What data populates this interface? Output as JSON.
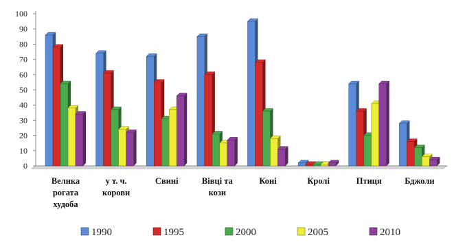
{
  "chart_data": {
    "type": "bar",
    "categories": [
      [
        "Велика",
        "рогата",
        "худоба"
      ],
      [
        "у т. ч.",
        "корови"
      ],
      [
        "Свині"
      ],
      [
        "Вівці та",
        "кози"
      ],
      [
        "Коні"
      ],
      [
        "Кролі"
      ],
      [
        "Птиця"
      ],
      [
        "Бджоли"
      ]
    ],
    "series": [
      {
        "name": "1990",
        "color": "#5b8bd6",
        "values": [
          86,
          74,
          72,
          85,
          95,
          2,
          54,
          28
        ]
      },
      {
        "name": "1995",
        "color": "#d42a2a",
        "values": [
          78,
          61,
          55,
          60,
          68,
          1,
          36,
          16
        ]
      },
      {
        "name": "2000",
        "color": "#4caa4f",
        "values": [
          54,
          37,
          31,
          21,
          36,
          1,
          20,
          12
        ]
      },
      {
        "name": "2005",
        "color": "#eded35",
        "values": [
          38,
          24,
          37,
          15,
          18,
          1,
          41,
          6
        ]
      },
      {
        "name": "2010",
        "color": "#8f3f9c",
        "values": [
          34,
          22,
          46,
          17,
          11,
          2,
          54,
          4
        ]
      }
    ],
    "yticks": [
      0,
      10,
      20,
      30,
      40,
      50,
      60,
      70,
      80,
      90,
      100
    ],
    "ylim": [
      0,
      100
    ],
    "title": "",
    "xlabel": "",
    "ylabel": "",
    "grid": false,
    "legend": "bottom"
  }
}
